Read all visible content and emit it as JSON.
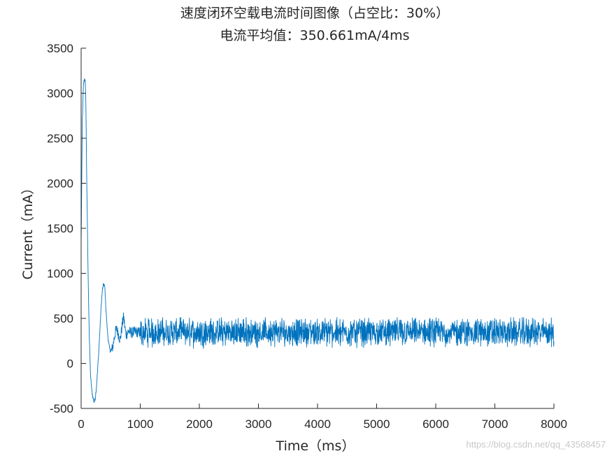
{
  "chart_data": {
    "type": "line",
    "title": "速度闭环空载电流时间图像（占空比：30%）",
    "subtitle": "电流平均值：350.661mA/4ms",
    "xlabel": "Time（ms）",
    "ylabel": "Current（mA）",
    "xlim": [
      0,
      8000
    ],
    "ylim": [
      -500,
      3500
    ],
    "xticks": [
      0,
      1000,
      2000,
      3000,
      4000,
      5000,
      6000,
      7000,
      8000
    ],
    "yticks": [
      -500,
      0,
      500,
      1000,
      1500,
      2000,
      2500,
      3000,
      3500
    ],
    "grid": false,
    "box": false,
    "series": [
      {
        "color": "#0072BD",
        "x": [
          0,
          20,
          40,
          60,
          70,
          80,
          90,
          100,
          120,
          140,
          160,
          180,
          200,
          220,
          240,
          260,
          280,
          300,
          320,
          340,
          360,
          380,
          400,
          420,
          440,
          460,
          480,
          500,
          520,
          540,
          560,
          580,
          600,
          620,
          640,
          660,
          680,
          700,
          720,
          740,
          760,
          780,
          800,
          850,
          900,
          1000
        ],
        "y": [
          1300,
          2700,
          3100,
          3170,
          3120,
          2900,
          2300,
          1800,
          900,
          250,
          -150,
          -300,
          -380,
          -430,
          -380,
          -250,
          -60,
          150,
          400,
          650,
          820,
          880,
          850,
          600,
          400,
          250,
          170,
          130,
          150,
          200,
          280,
          350,
          380,
          350,
          300,
          260,
          350,
          450,
          520,
          400,
          320,
          330,
          360,
          340,
          350,
          345
        ]
      }
    ],
    "steady_state": {
      "x_start": 1000,
      "x_end": 8000,
      "mean": 345,
      "low": 160,
      "high": 490
    }
  },
  "watermark": "https://blog.csdn.net/qq_43568457"
}
